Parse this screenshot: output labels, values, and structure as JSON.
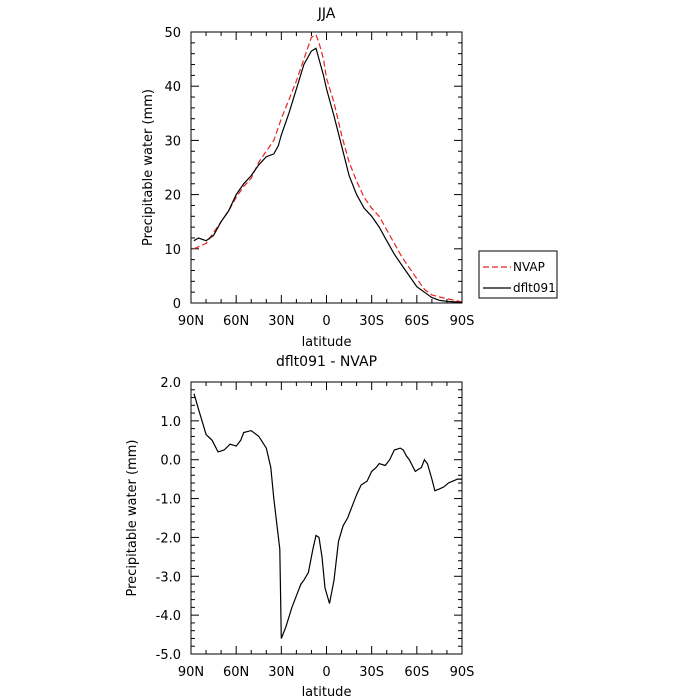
{
  "chart_data": [
    {
      "type": "line",
      "title": "JJA",
      "xlabel": "latitude",
      "ylabel": "Precipitable water (mm)",
      "xlim": [
        90,
        -90
      ],
      "ylim": [
        0,
        50
      ],
      "xticks": [
        90,
        60,
        30,
        0,
        -30,
        -60,
        -90
      ],
      "xtick_labels": [
        "90N",
        "60N",
        "30N",
        "0",
        "30S",
        "60S",
        "90S"
      ],
      "yticks": [
        0,
        10,
        20,
        30,
        40,
        50
      ],
      "ytick_labels": [
        "0",
        "10",
        "20",
        "30",
        "40",
        "50"
      ],
      "grid": false,
      "legend": "right",
      "series": [
        {
          "name": "NVAP",
          "color": "#e8231f",
          "dash": "dashed",
          "x": [
            88,
            80,
            75,
            70,
            65,
            60,
            55,
            50,
            45,
            40,
            35,
            30,
            25,
            20,
            15,
            10,
            7,
            5,
            2,
            0,
            -5,
            -10,
            -15,
            -20,
            -25,
            -30,
            -35,
            -40,
            -45,
            -50,
            -55,
            -60,
            -65,
            -70,
            -75,
            -80,
            -85,
            -90
          ],
          "y": [
            10,
            11,
            13,
            15,
            17,
            19.5,
            21.5,
            23,
            26,
            28,
            30,
            34,
            37.5,
            41,
            45,
            49,
            49.5,
            48,
            45,
            41.5,
            37,
            31,
            26,
            22.5,
            19.5,
            17.5,
            16,
            13.5,
            11,
            8.5,
            6.5,
            4.5,
            2.5,
            1.5,
            1.1,
            0.8,
            0.5,
            0.2
          ]
        },
        {
          "name": "dflt091",
          "color": "#000000",
          "dash": "solid",
          "x": [
            88,
            85,
            80,
            75,
            70,
            65,
            60,
            55,
            50,
            45,
            40,
            35,
            32,
            30,
            25,
            20,
            15,
            10,
            7,
            5,
            2,
            0,
            -5,
            -10,
            -15,
            -20,
            -25,
            -30,
            -35,
            -40,
            -45,
            -50,
            -55,
            -60,
            -65,
            -70,
            -75,
            -80,
            -85,
            -90
          ],
          "y": [
            11.5,
            12,
            11.5,
            12.5,
            15,
            17,
            20,
            22,
            23.5,
            25.5,
            27,
            27.5,
            29,
            31,
            35,
            39.5,
            44,
            46.5,
            47,
            45,
            42,
            39.5,
            34.5,
            29,
            23.5,
            20,
            17.5,
            16,
            14,
            11.5,
            9,
            7,
            5,
            3,
            2,
            1,
            0.5,
            0.3,
            0.2,
            0.1
          ]
        }
      ]
    },
    {
      "type": "line",
      "title": "dflt091 - NVAP",
      "xlabel": "latitude",
      "ylabel": "Precipitable water (mm)",
      "xlim": [
        90,
        -90
      ],
      "ylim": [
        -5,
        2
      ],
      "xticks": [
        90,
        60,
        30,
        0,
        -30,
        -60,
        -90
      ],
      "xtick_labels": [
        "90N",
        "60N",
        "30N",
        "0",
        "30S",
        "60S",
        "90S"
      ],
      "yticks": [
        -5,
        -4,
        -3,
        -2,
        -1,
        0,
        1,
        2
      ],
      "ytick_labels": [
        "-5.0",
        "-4.0",
        "-3.0",
        "-2.0",
        "-1.0",
        "0.0",
        "1.0",
        "2.0"
      ],
      "grid": false,
      "series": [
        {
          "color": "#000000",
          "dash": "solid",
          "x": [
            88,
            85,
            80,
            76,
            72,
            68,
            64,
            60,
            57,
            55,
            50,
            45,
            40,
            37,
            35,
            31,
            30,
            27,
            23,
            20,
            17,
            15,
            12,
            9,
            7,
            5,
            3,
            1,
            -2,
            -5,
            -8,
            -11,
            -14,
            -17,
            -20,
            -23,
            -27,
            -30,
            -33,
            -35,
            -39,
            -42,
            -45,
            -49,
            -51,
            -53,
            -55,
            -59,
            -63,
            -65,
            -67,
            -70,
            -72,
            -75,
            -78,
            -81,
            -84,
            -87,
            -90
          ],
          "y": [
            1.7,
            1.3,
            0.65,
            0.5,
            0.2,
            0.25,
            0.4,
            0.35,
            0.5,
            0.7,
            0.75,
            0.6,
            0.3,
            -0.2,
            -1,
            -2.3,
            -4.6,
            -4.3,
            -3.8,
            -3.5,
            -3.2,
            -3.1,
            -2.9,
            -2.3,
            -1.95,
            -2,
            -2.5,
            -3.3,
            -3.7,
            -3.1,
            -2.1,
            -1.7,
            -1.5,
            -1.2,
            -0.9,
            -0.65,
            -0.55,
            -0.3,
            -0.2,
            -0.1,
            -0.15,
            0,
            0.25,
            0.3,
            0.25,
            0.1,
            0,
            -0.3,
            -0.2,
            0,
            -0.1,
            -0.5,
            -0.8,
            -0.75,
            -0.7,
            -0.6,
            -0.55,
            -0.5,
            -0.5
          ]
        }
      ]
    }
  ]
}
